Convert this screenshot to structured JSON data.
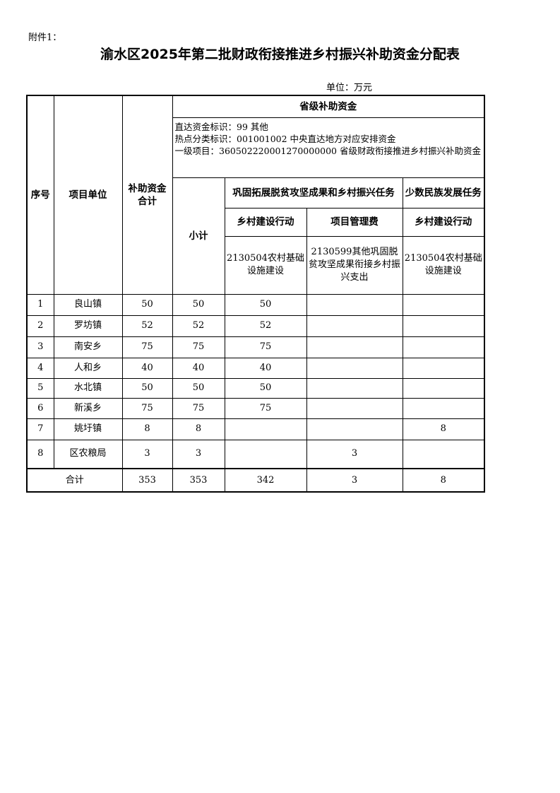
{
  "attachment": "附件1：",
  "title": "渝水区2025年第二批财政衔接推进乡村振兴补助资金分配表",
  "unit": "单位：万元",
  "headers": {
    "seq": "序号",
    "unit_name": "项目单位",
    "total": "补助资金合计",
    "provincial": "省级补助资金",
    "info": [
      "直达资金标识：99 其他",
      "热点分类标识：001001002 中央直达地方对应安排资金",
      "一级项目：360502220001270000000 省级财政衔接推进乡村振兴补助资金"
    ],
    "subtotal": "小计",
    "task1": "巩固拓展脱贫攻坚成果和乡村振兴任务",
    "task2": "少数民族发展任务",
    "sub1": "乡村建设行动",
    "sub2": "项目管理费",
    "sub3": "乡村建设行动",
    "code1": "2130504农村基础设施建设",
    "code2": "2130599其他巩固脱贫攻坚成果衔接乡村振兴支出",
    "code3": "2130504农村基础设施建设"
  },
  "rows": [
    {
      "seq": "1",
      "name": "良山镇",
      "total": "50",
      "subtotal": "50",
      "c1": "50",
      "c2": "",
      "c3": ""
    },
    {
      "seq": "2",
      "name": "罗坊镇",
      "total": "52",
      "subtotal": "52",
      "c1": "52",
      "c2": "",
      "c3": ""
    },
    {
      "seq": "3",
      "name": "南安乡",
      "total": "75",
      "subtotal": "75",
      "c1": "75",
      "c2": "",
      "c3": ""
    },
    {
      "seq": "4",
      "name": "人和乡",
      "total": "40",
      "subtotal": "40",
      "c1": "40",
      "c2": "",
      "c3": ""
    },
    {
      "seq": "5",
      "name": "水北镇",
      "total": "50",
      "subtotal": "50",
      "c1": "50",
      "c2": "",
      "c3": ""
    },
    {
      "seq": "6",
      "name": "新溪乡",
      "total": "75",
      "subtotal": "75",
      "c1": "75",
      "c2": "",
      "c3": ""
    },
    {
      "seq": "7",
      "name": "姚圩镇",
      "total": "8",
      "subtotal": "8",
      "c1": "",
      "c2": "",
      "c3": "8"
    },
    {
      "seq": "8",
      "name": "区农粮局",
      "total": "3",
      "subtotal": "3",
      "c1": "",
      "c2": "3",
      "c3": ""
    }
  ],
  "totals": {
    "label": "合计",
    "total": "353",
    "subtotal": "353",
    "c1": "342",
    "c2": "3",
    "c3": "8"
  }
}
